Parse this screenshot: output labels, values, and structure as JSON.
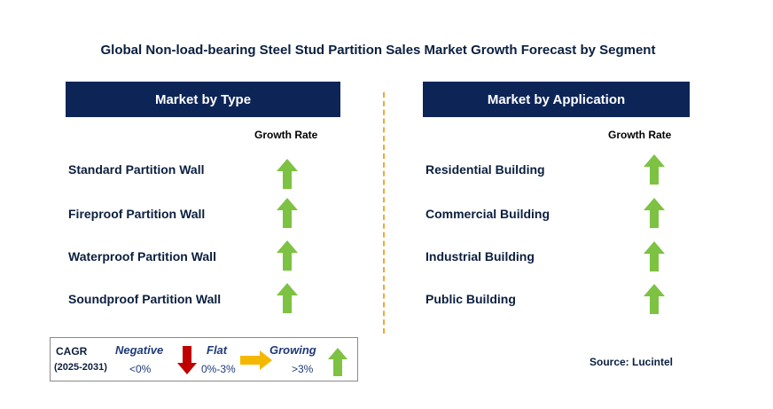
{
  "title": "Global Non-load-bearing Steel Stud Partition Sales Market Growth Forecast by Segment",
  "left_panel": {
    "header": "Market by Type",
    "column_label": "Growth Rate",
    "rows": [
      {
        "label": "Standard Partition Wall",
        "growth": "growing"
      },
      {
        "label": "Fireproof Partition Wall",
        "growth": "growing"
      },
      {
        "label": "Waterproof Partition Wall",
        "growth": "growing"
      },
      {
        "label": "Soundproof Partition Wall",
        "growth": "growing"
      }
    ]
  },
  "right_panel": {
    "header": "Market by Application",
    "column_label": "Growth Rate",
    "rows": [
      {
        "label": "Residential Building",
        "growth": "growing"
      },
      {
        "label": "Commercial Building",
        "growth": "growing"
      },
      {
        "label": "Industrial Building",
        "growth": "growing"
      },
      {
        "label": "Public Building",
        "growth": "growing"
      }
    ]
  },
  "legend": {
    "cagr_label": "CAGR",
    "period": "(2025-2031)",
    "negative": {
      "label": "Negative",
      "range": "<0%"
    },
    "flat": {
      "label": "Flat",
      "range": "0%-3%"
    },
    "growing": {
      "label": "Growing",
      "range": ">3%"
    }
  },
  "source": "Source: Lucintel",
  "colors": {
    "header_bg": "#0d2457",
    "growing_arrow": "#7dc242",
    "negative_arrow": "#c00000",
    "flat_arrow": "#f5b800",
    "divider": "#f0a830"
  }
}
